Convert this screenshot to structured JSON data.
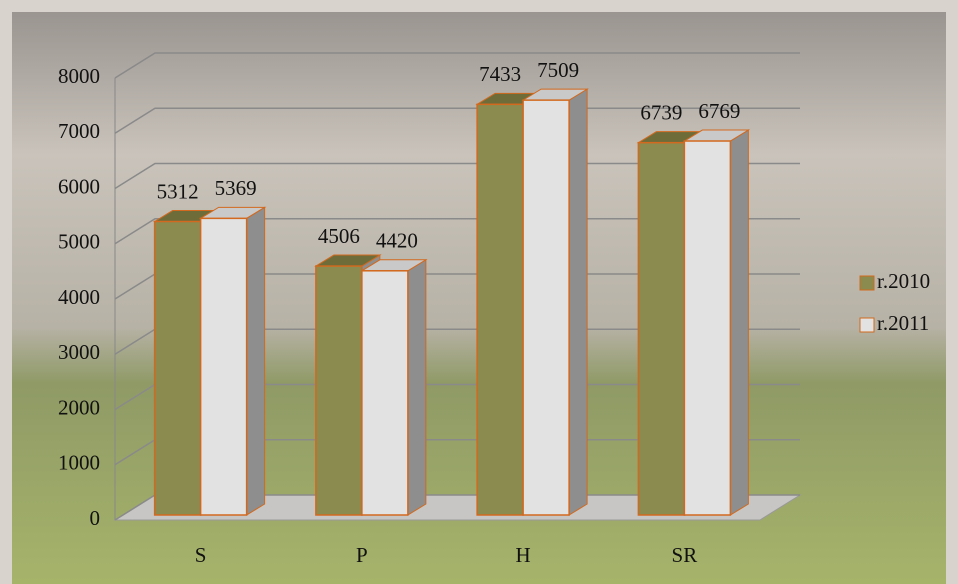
{
  "chart_data": {
    "type": "bar3d",
    "categories": [
      "S",
      "P",
      "H",
      "SR"
    ],
    "series": [
      {
        "name": "r.2010",
        "color": "#8b8a4f",
        "values": [
          5312,
          4506,
          7433,
          6739
        ]
      },
      {
        "name": "r.2011",
        "color": "#e2e2e2",
        "values": [
          5369,
          4420,
          7509,
          6769
        ]
      }
    ],
    "ylim": [
      0,
      8000
    ],
    "yticks": [
      0,
      1000,
      2000,
      3000,
      4000,
      5000,
      6000,
      7000,
      8000
    ],
    "grid": true,
    "legend": "right"
  }
}
